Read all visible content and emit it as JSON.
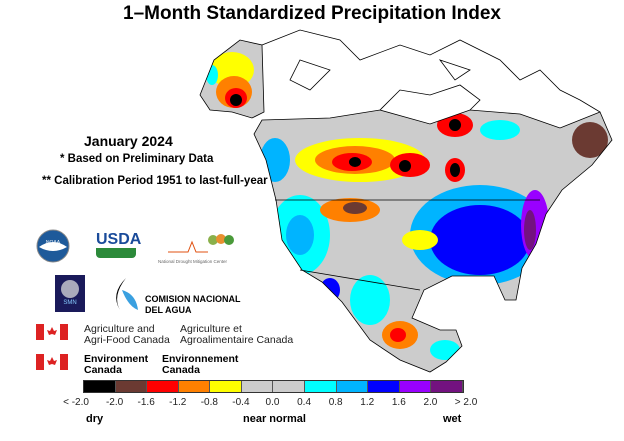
{
  "title": "1–Month Standardized Precipitation Index",
  "period": "January 2024",
  "notes": [
    "* Based on Preliminary Data",
    "** Calibration Period 1951 to last-full-year"
  ],
  "logos": {
    "noaa": "NOAA",
    "usda": "USDA",
    "ndmc": "National Drought Mitigation Center",
    "smn": "SMN",
    "conagua": [
      "COMISION NACIONAL",
      "DEL AGUA"
    ],
    "aafc_en": [
      "Agriculture and",
      "Agri-Food Canada"
    ],
    "aafc_fr": [
      "Agriculture et",
      "Agroalimentaire Canada"
    ],
    "ec_en": [
      "Environment",
      "Canada"
    ],
    "ec_fr": [
      "Environnement",
      "Canada"
    ]
  },
  "legend": {
    "colors": [
      "#000000",
      "#6b3a32",
      "#ff0000",
      "#ff8000",
      "#ffff00",
      "#cccccc",
      "#cccccc",
      "#00ffff",
      "#00b4ff",
      "#0000ff",
      "#9900ff",
      "#73127f"
    ],
    "ticks": [
      "< -2.0",
      "-2.0",
      "-1.6",
      "-1.2",
      "-0.8",
      "-0.4",
      "0.0",
      "0.4",
      "0.8",
      "1.2",
      "1.6",
      "2.0",
      "> 2.0"
    ],
    "dry": "dry",
    "normal": "near normal",
    "wet": "wet"
  }
}
